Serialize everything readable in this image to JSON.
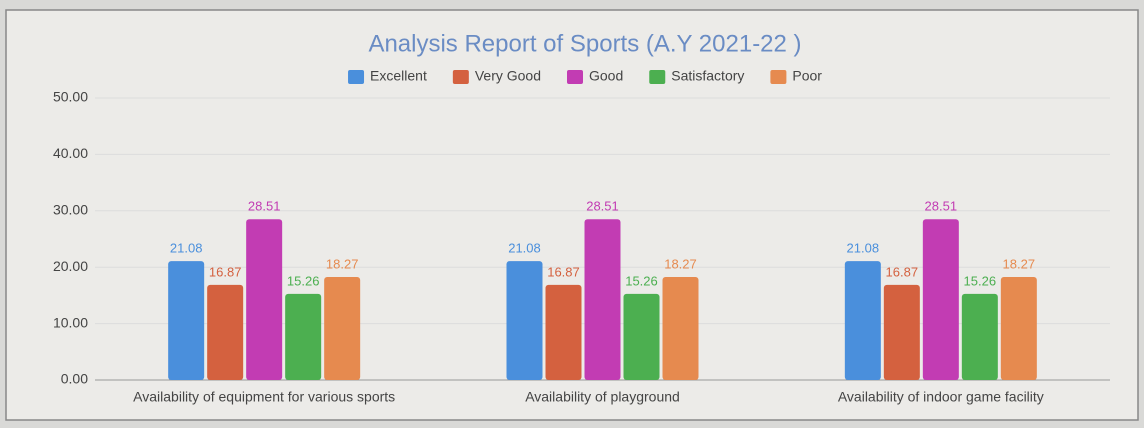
{
  "chart_data": {
    "type": "bar",
    "title": "Analysis Report of Sports (A.Y  2021-22 )",
    "categories": [
      "Availability of equipment for various sports",
      "Availability of playground",
      "Availability of indoor game facility"
    ],
    "series": [
      {
        "name": "Excellent",
        "color": "#4a8fdc",
        "values": [
          21.08,
          21.08,
          21.08
        ]
      },
      {
        "name": "Very Good",
        "color": "#d4613f",
        "values": [
          16.87,
          16.87,
          16.87
        ]
      },
      {
        "name": "Good",
        "color": "#c23cb3",
        "values": [
          28.51,
          28.51,
          28.51
        ]
      },
      {
        "name": "Satisfactory",
        "color": "#4caf50",
        "values": [
          15.26,
          15.26,
          15.26
        ]
      },
      {
        "name": "Poor",
        "color": "#e68a4f",
        "values": [
          18.27,
          18.27,
          18.27
        ]
      }
    ],
    "ylim": [
      0,
      50
    ],
    "yticks": [
      {
        "value": 0,
        "label": "0.00"
      },
      {
        "value": 10,
        "label": "10.00"
      },
      {
        "value": 20,
        "label": "20.00"
      },
      {
        "value": 30,
        "label": "30.00"
      },
      {
        "value": 40,
        "label": "40.00"
      },
      {
        "value": 50,
        "label": "50.00"
      }
    ],
    "grid": true,
    "legend": "top"
  }
}
